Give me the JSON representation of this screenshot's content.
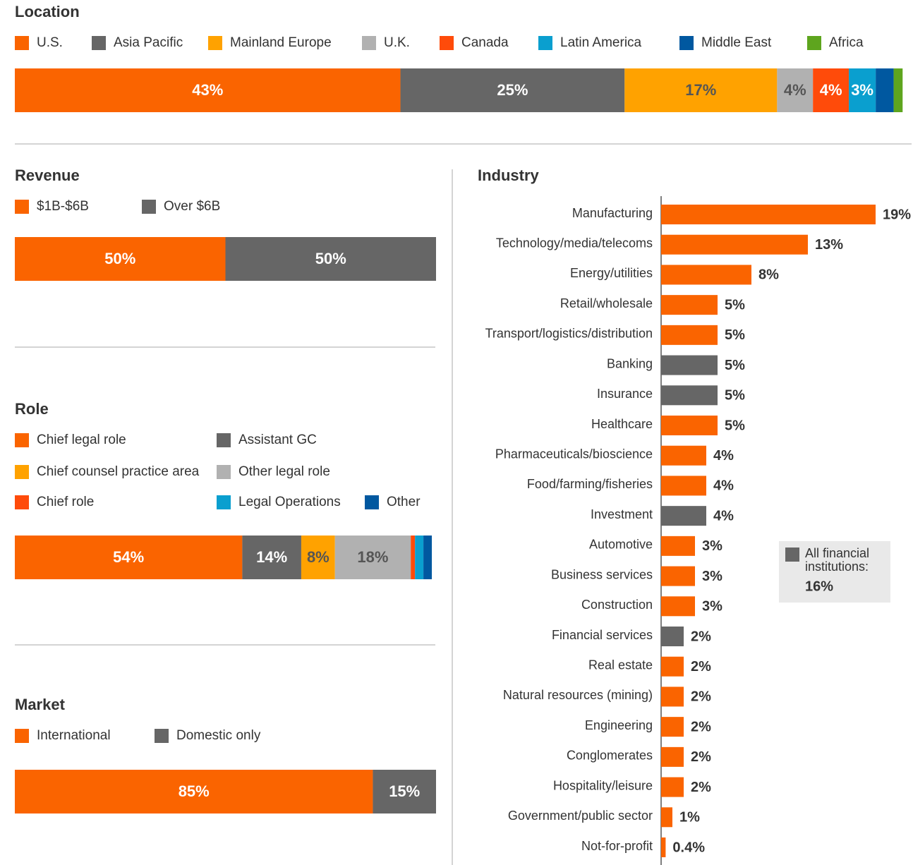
{
  "chart_data": [
    {
      "type": "stacked-bar",
      "title": "Location",
      "categories": [
        "U.S.",
        "Asia Pacific",
        "Mainland Europe",
        "U.K.",
        "Canada",
        "Latin America",
        "Middle East",
        "Africa"
      ],
      "values": [
        43,
        25,
        17,
        4,
        4,
        3,
        2,
        1
      ],
      "value_labels": [
        "43%",
        "25%",
        "17%",
        "4%",
        "4%",
        "3%",
        null,
        null
      ],
      "colors": [
        "#fa6400",
        "#666666",
        "#ffa200",
        "#b1b1b1",
        "#ff4b0a",
        "#0a9fcf",
        "#0058a0",
        "#5ea51e"
      ],
      "xlim": [
        0,
        100
      ]
    },
    {
      "type": "stacked-bar",
      "title": "Revenue",
      "categories": [
        "$1B-$6B",
        "Over $6B"
      ],
      "values": [
        50,
        50
      ],
      "value_labels": [
        "50%",
        "50%"
      ],
      "colors": [
        "#fa6400",
        "#666666"
      ],
      "xlim": [
        0,
        100
      ]
    },
    {
      "type": "stacked-bar",
      "title": "Role",
      "categories": [
        "Chief legal role",
        "Assistant GC",
        "Chief counsel practice area",
        "Other legal role",
        "Chief role",
        "Legal Operations",
        "Other"
      ],
      "values": [
        54,
        14,
        8,
        18,
        1,
        2,
        2
      ],
      "value_labels": [
        "54%",
        "14%",
        "8%",
        "18%",
        null,
        null,
        null
      ],
      "colors": [
        "#fa6400",
        "#666666",
        "#ffa200",
        "#b1b1b1",
        "#ff4b0a",
        "#0a9fcf",
        "#0058a0"
      ],
      "xlim": [
        0,
        100
      ]
    },
    {
      "type": "stacked-bar",
      "title": "Market",
      "categories": [
        "International",
        "Domestic only"
      ],
      "values": [
        85,
        15
      ],
      "value_labels": [
        "85%",
        "15%"
      ],
      "colors": [
        "#fa6400",
        "#666666"
      ],
      "xlim": [
        0,
        100
      ]
    },
    {
      "type": "bar",
      "orientation": "horizontal",
      "title": "Industry",
      "categories": [
        "Manufacturing",
        "Technology/media/telecoms",
        "Energy/utilities",
        "Retail/wholesale",
        "Transport/logistics/distribution",
        "Banking",
        "Insurance",
        "Healthcare",
        "Pharmaceuticals/bioscience",
        "Food/farming/fisheries",
        "Investment",
        "Automotive",
        "Business services",
        "Construction",
        "Financial services",
        "Real estate",
        "Natural resources (mining)",
        "Engineering",
        "Conglomerates",
        "Hospitality/leisure",
        "Government/public sector",
        "Not-for-profit"
      ],
      "values": [
        19,
        13,
        8,
        5,
        5,
        5,
        5,
        5,
        4,
        4,
        4,
        3,
        3,
        3,
        2,
        2,
        2,
        2,
        2,
        2,
        1,
        0.4
      ],
      "value_labels": [
        "19%",
        "13%",
        "8%",
        "5%",
        "5%",
        "5%",
        "5%",
        "5%",
        "4%",
        "4%",
        "4%",
        "3%",
        "3%",
        "3%",
        "2%",
        "2%",
        "2%",
        "2%",
        "2%",
        "2%",
        "1%",
        "0.4%"
      ],
      "colors": [
        "#fa6400",
        "#fa6400",
        "#fa6400",
        "#fa6400",
        "#fa6400",
        "#666666",
        "#666666",
        "#fa6400",
        "#fa6400",
        "#fa6400",
        "#666666",
        "#fa6400",
        "#fa6400",
        "#fa6400",
        "#666666",
        "#fa6400",
        "#fa6400",
        "#fa6400",
        "#fa6400",
        "#fa6400",
        "#fa6400",
        "#fa6400"
      ],
      "xlim": [
        0,
        19
      ],
      "annotation": {
        "text": "All financial institutions:",
        "value_label": "16%",
        "color": "#666666"
      }
    }
  ]
}
